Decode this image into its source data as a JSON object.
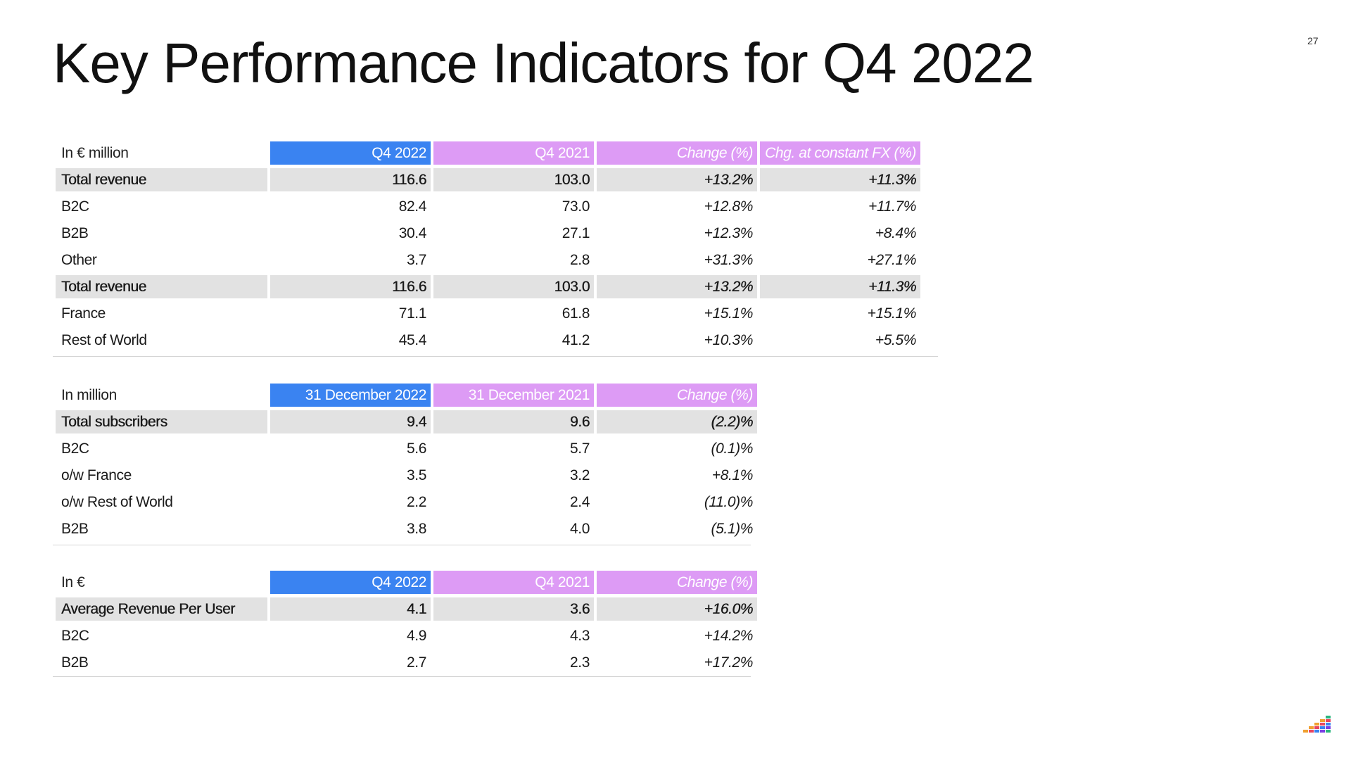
{
  "title": "Key Performance Indicators for Q4 2022",
  "page_number": "27",
  "tables": [
    {
      "headers": [
        "In € million",
        "Q4 2022",
        "Q4 2021",
        "Change  (%)",
        "Chg. at constant FX (%)"
      ],
      "rows": [
        {
          "label": "Total revenue",
          "values": [
            "116.6",
            "103.0",
            "+13.2%",
            "+11.3%"
          ],
          "highlight": true
        },
        {
          "label": "B2C",
          "values": [
            "82.4",
            "73.0",
            "+12.8%",
            "+11.7%"
          ],
          "highlight": false
        },
        {
          "label": "B2B",
          "values": [
            "30.4",
            "27.1",
            "+12.3%",
            "+8.4%"
          ],
          "highlight": false
        },
        {
          "label": "Other",
          "values": [
            "3.7",
            "2.8",
            "+31.3%",
            "+27.1%"
          ],
          "highlight": false
        },
        {
          "label": "Total revenue",
          "values": [
            "116.6",
            "103.0",
            "+13.2%",
            "+11.3%"
          ],
          "highlight": true
        },
        {
          "label": "France",
          "values": [
            "71.1",
            "61.8",
            "+15.1%",
            "+15.1%"
          ],
          "highlight": false
        },
        {
          "label": "Rest of World",
          "values": [
            "45.4",
            "41.2",
            "+10.3%",
            "+5.5%"
          ],
          "highlight": false
        }
      ]
    },
    {
      "headers": [
        "In million",
        "31 December 2022",
        "31 December 2021",
        "Change (%)"
      ],
      "rows": [
        {
          "label": "Total subscribers",
          "values": [
            "9.4",
            "9.6",
            "(2.2)%"
          ],
          "highlight": true
        },
        {
          "label": "B2C",
          "values": [
            "5.6",
            "5.7",
            "(0.1)%"
          ],
          "highlight": false
        },
        {
          "label": "o/w France",
          "values": [
            "3.5",
            "3.2",
            "+8.1%"
          ],
          "highlight": false
        },
        {
          "label": "o/w Rest of World",
          "values": [
            "2.2",
            "2.4",
            "(11.0)%"
          ],
          "highlight": false
        },
        {
          "label": "B2B",
          "values": [
            "3.8",
            "4.0",
            "(5.1)%"
          ],
          "highlight": false
        }
      ]
    },
    {
      "headers": [
        "In €",
        "Q4 2022",
        "Q4 2021",
        "Change (%)"
      ],
      "rows": [
        {
          "label": "Average Revenue Per User",
          "values": [
            "4.1",
            "3.6",
            "+16.0%"
          ],
          "highlight": true
        },
        {
          "label": "B2C",
          "values": [
            "4.9",
            "4.3",
            "+14.2%"
          ],
          "highlight": false
        },
        {
          "label": "B2B",
          "values": [
            "2.7",
            "2.3",
            "+17.2%"
          ],
          "highlight": false
        }
      ]
    }
  ],
  "colors": {
    "header_current": "#3a83f1",
    "header_prior": "#dd9bf5",
    "total_row_bg": "#e2e2e2"
  },
  "logo_icon": "equalizer-bars-logo"
}
